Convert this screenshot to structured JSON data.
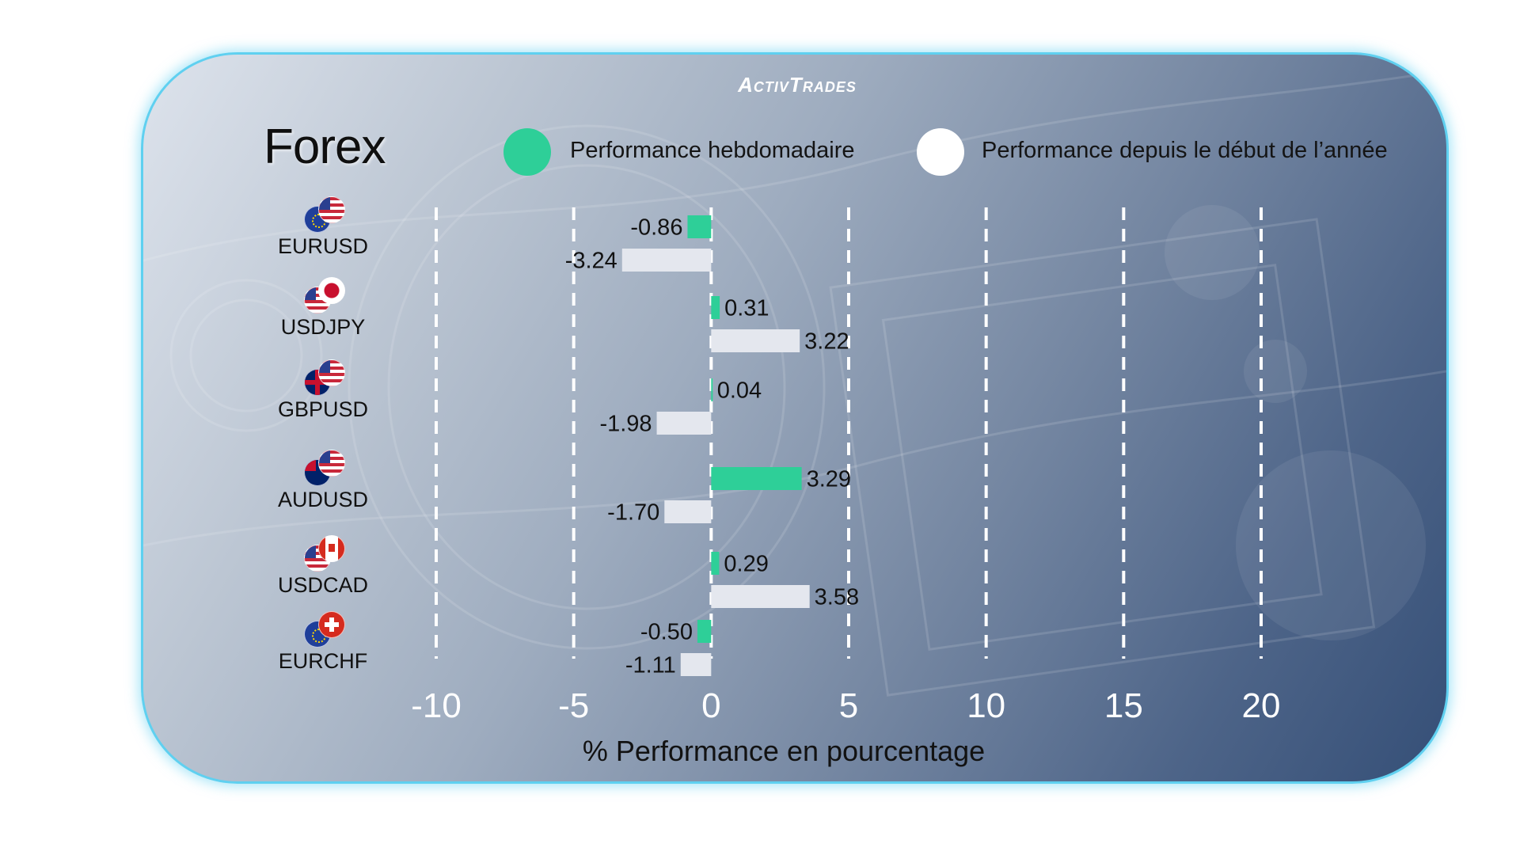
{
  "brand": "ActivTrades",
  "legend": [
    {
      "label": "Performance hebdomadaire",
      "color": "#2ecf98"
    },
    {
      "label": "Performance depuis le début de l’année",
      "color": "#ffffff"
    }
  ],
  "pairs": [
    {
      "label": "EURUSD",
      "flags": [
        "eu-flag-icon",
        "us-flag-icon"
      ]
    },
    {
      "label": "USDJPY",
      "flags": [
        "us-flag-icon",
        "jp-flag-icon"
      ]
    },
    {
      "label": "GBPUSD",
      "flags": [
        "gb-flag-icon",
        "us-flag-icon"
      ]
    },
    {
      "label": "AUDUSD",
      "flags": [
        "au-flag-icon",
        "us-flag-icon"
      ]
    },
    {
      "label": "USDCAD",
      "flags": [
        "us-flag-icon",
        "ca-flag-icon"
      ]
    },
    {
      "label": "EURCHF",
      "flags": [
        "eu-flag-icon",
        "ch-flag-icon"
      ]
    }
  ],
  "chart_data": {
    "type": "bar",
    "orientation": "horizontal",
    "title": "Forex",
    "xlabel": "% Performance en pourcentage",
    "categories": [
      "EURUSD",
      "USDJPY",
      "GBPUSD",
      "AUDUSD",
      "USDCAD",
      "EURCHF"
    ],
    "series": [
      {
        "name": "Performance hebdomadaire",
        "color": "#2ecf98",
        "values": [
          -0.86,
          0.31,
          0.04,
          3.29,
          0.29,
          -0.5
        ],
        "labels": [
          "-0.86",
          "0.31",
          "0.04",
          "3.29",
          "0.29",
          "-0.50"
        ]
      },
      {
        "name": "Performance depuis le début de l’année",
        "color": "#e4e7ee",
        "values": [
          -3.24,
          3.22,
          -1.98,
          -1.7,
          3.58,
          -1.11
        ],
        "labels": [
          "-3.24",
          "3.22",
          "-1.98",
          "-1.70",
          "3.58",
          "-1.11"
        ]
      }
    ],
    "xlim": [
      -10,
      20
    ],
    "xticks": [
      -10,
      -5,
      0,
      5,
      10,
      15,
      20
    ],
    "grid": "vertical dashed",
    "legend_position": "top"
  }
}
